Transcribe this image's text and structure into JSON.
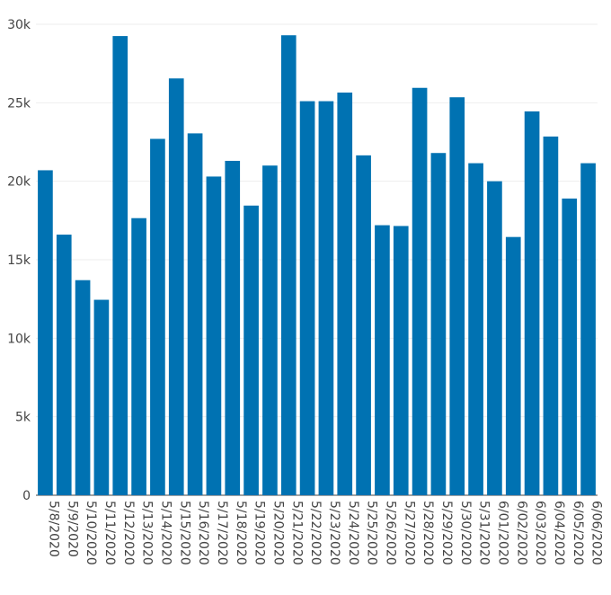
{
  "chart_data": {
    "type": "bar",
    "categories": [
      "5/8/2020",
      "5/9/2020",
      "5/10/2020",
      "5/11/2020",
      "5/12/2020",
      "5/13/2020",
      "5/14/2020",
      "5/15/2020",
      "5/16/2020",
      "5/17/2020",
      "5/18/2020",
      "5/19/2020",
      "5/20/2020",
      "5/21/2020",
      "5/22/2020",
      "5/23/2020",
      "5/24/2020",
      "5/25/2020",
      "5/26/2020",
      "5/27/2020",
      "5/28/2020",
      "5/29/2020",
      "5/30/2020",
      "5/31/2020",
      "6/01/2020",
      "6/02/2020",
      "6/03/2020",
      "6/04/2020",
      "6/05/2020",
      "6/06/2020"
    ],
    "values": [
      20700,
      16600,
      13700,
      12450,
      29250,
      17650,
      22700,
      26550,
      23050,
      20300,
      21300,
      18450,
      21000,
      29300,
      25100,
      25100,
      25650,
      21650,
      17200,
      17150,
      25950,
      21800,
      25350,
      21150,
      20000,
      16450,
      24450,
      22850,
      18900,
      21150
    ],
    "title": "",
    "xlabel": "",
    "ylabel": "",
    "ylim": [
      0,
      30000
    ],
    "yticks": [
      0,
      5000,
      10000,
      15000,
      20000,
      25000,
      30000
    ],
    "ytick_labels": [
      "0",
      "5k",
      "10k",
      "15k",
      "20k",
      "25k",
      "30k"
    ],
    "grid": true,
    "bar_color": "#0072B2",
    "grid_color": "#eeeeee"
  }
}
